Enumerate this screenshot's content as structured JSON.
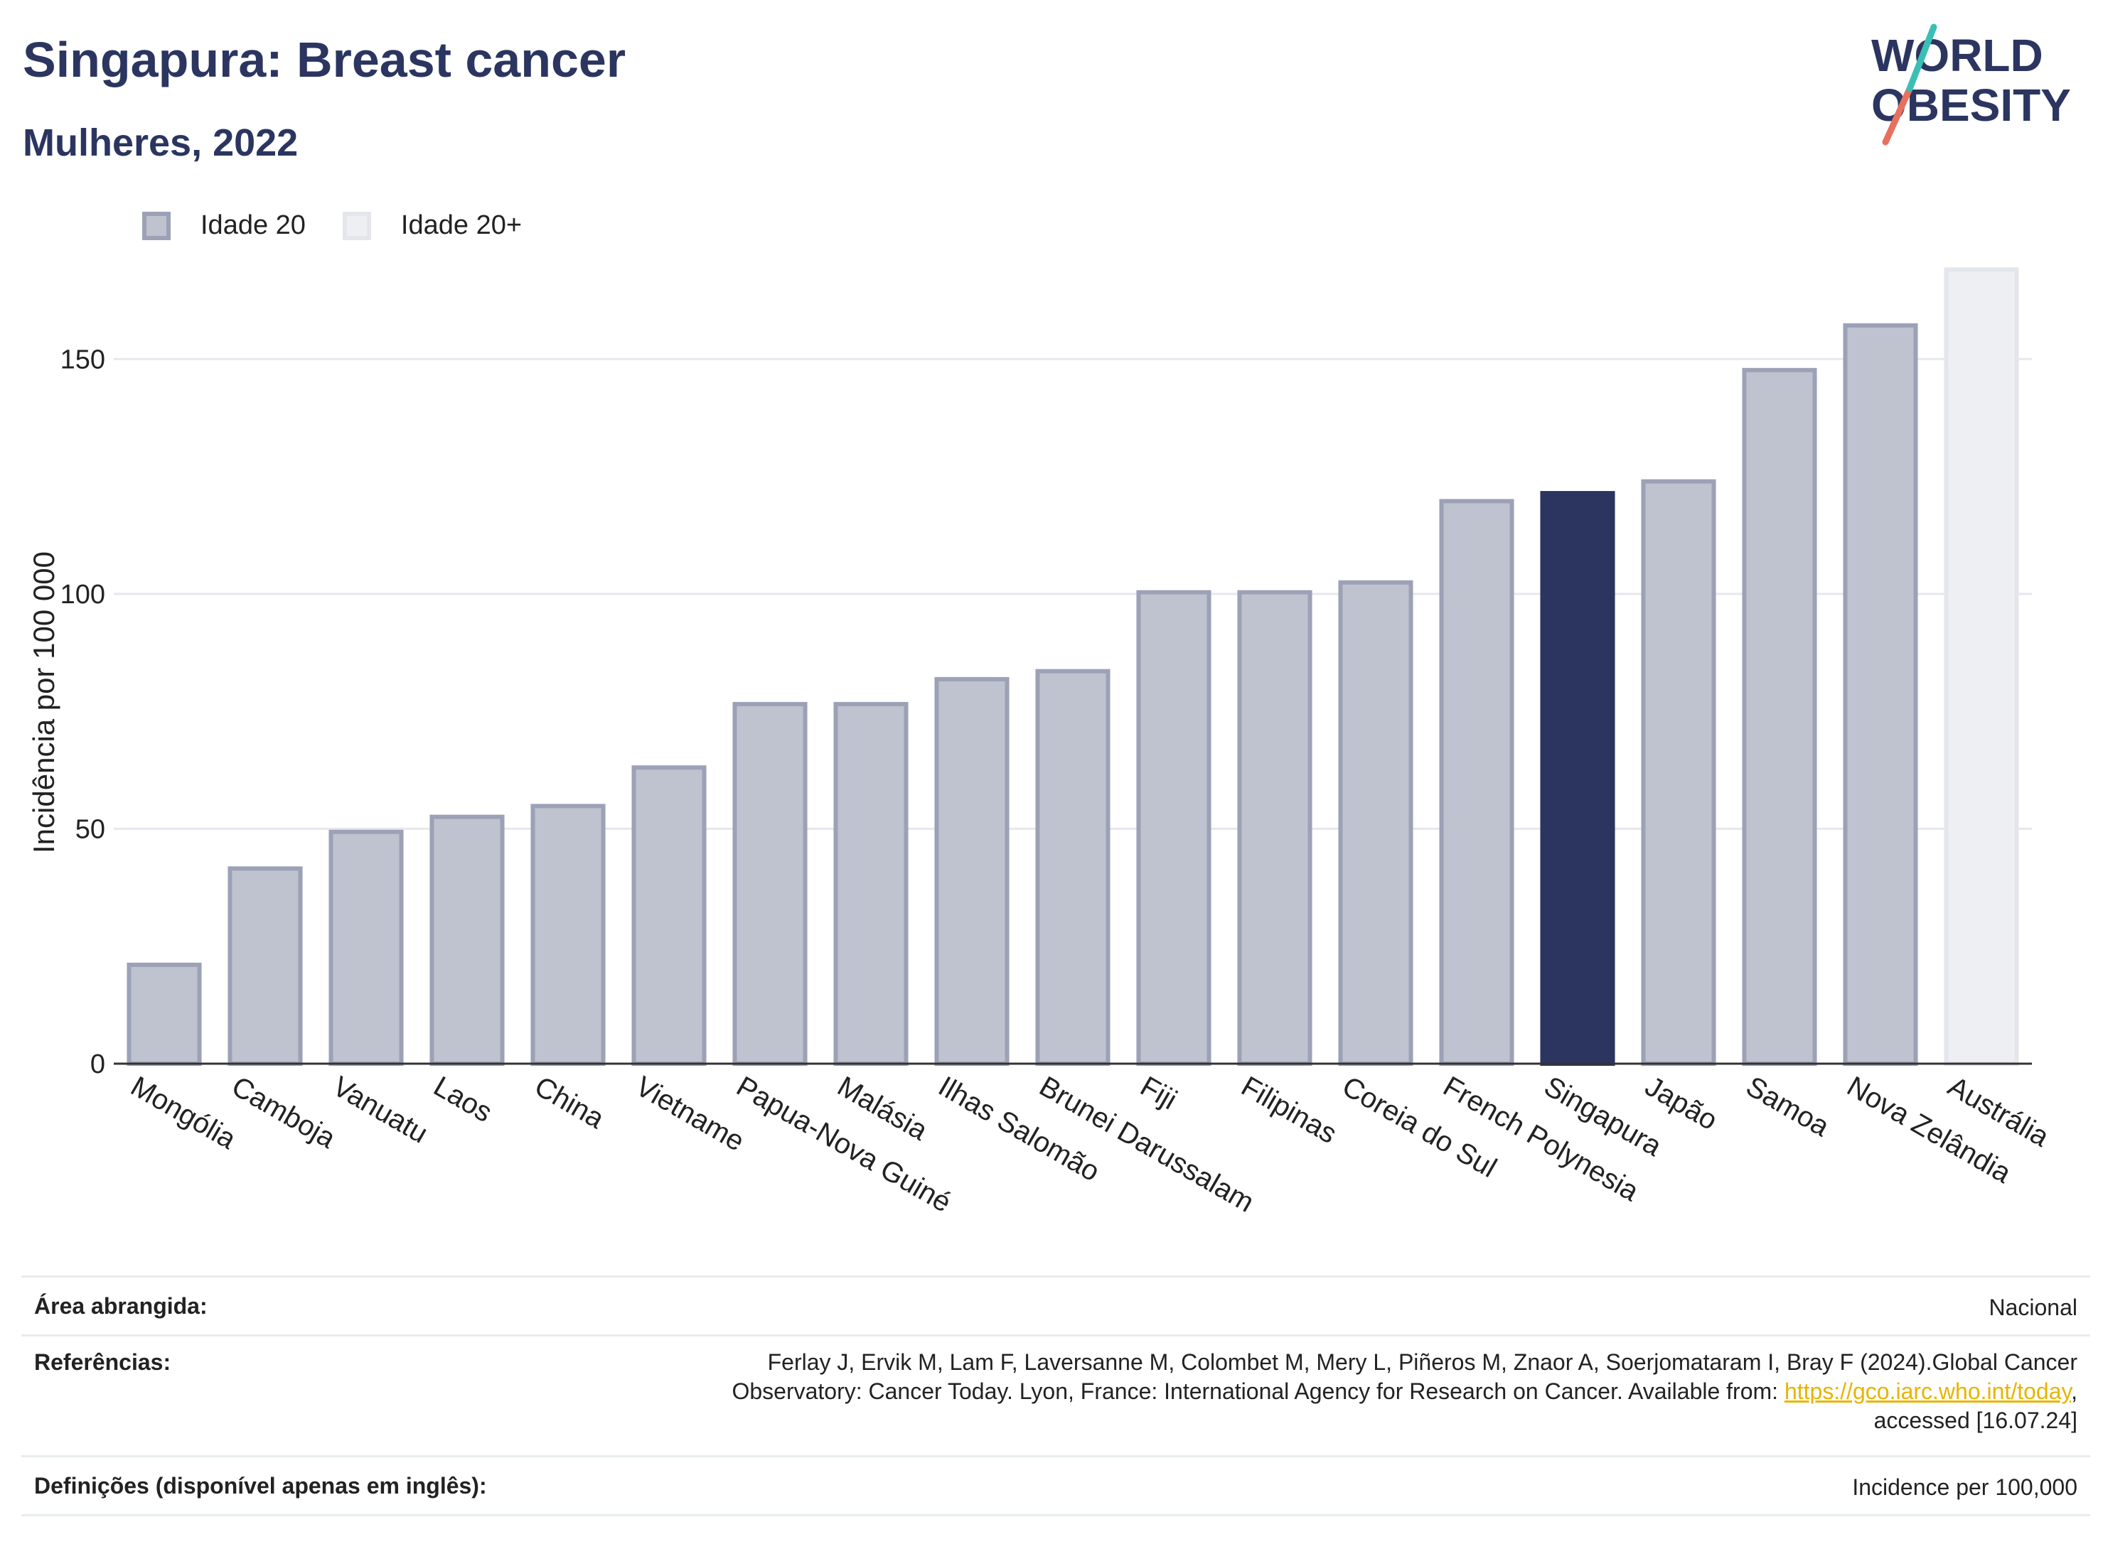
{
  "header": {
    "title": "Singapura: Breast cancer",
    "subtitle": "Mulheres, 2022"
  },
  "logo": {
    "line1": "WORLD",
    "line2": "OBESITY"
  },
  "legend": {
    "items": [
      {
        "label": "Idade 20"
      },
      {
        "label": "Idade 20+"
      }
    ]
  },
  "colors": {
    "bar_default": "#bfc2cf",
    "bar_default_border": "#9ca1b6",
    "bar_highlight": "#2b3560",
    "bar_light": "#eeeff3",
    "bar_light_border": "#e4e6ec",
    "link": "#e8b400"
  },
  "chart_data": {
    "type": "bar",
    "title": "Singapura: Breast cancer",
    "subtitle": "Mulheres, 2022",
    "ylabel": "Incidência por 100 000",
    "xlabel": "",
    "ylim": [
      0,
      175
    ],
    "yticks": [
      0,
      50,
      100,
      150
    ],
    "grid": true,
    "legend_position": "top-left",
    "categories": [
      "Mongólia",
      "Camboja",
      "Vanuatu",
      "Laos",
      "China",
      "Vietname",
      "Papua-Nova Guiné",
      "Malásia",
      "Ilhas Salomão",
      "Brunei Darussalam",
      "Fiji",
      "Filipinas",
      "Coreia do Sul",
      "French Polynesia",
      "Singapura",
      "Japão",
      "Samoa",
      "Nova Zelândia",
      "Austrália"
    ],
    "values": [
      21.5,
      42,
      49.8,
      53,
      55.3,
      63.5,
      77,
      77,
      82.3,
      84,
      100.8,
      100.8,
      102.9,
      120.2,
      121.9,
      124.4,
      148.1,
      157.6,
      169.5
    ],
    "series_type": [
      "Idade 20",
      "Idade 20",
      "Idade 20",
      "Idade 20",
      "Idade 20",
      "Idade 20",
      "Idade 20",
      "Idade 20",
      "Idade 20",
      "Idade 20",
      "Idade 20",
      "Idade 20",
      "Idade 20",
      "Idade 20",
      "Idade 20",
      "Idade 20",
      "Idade 20",
      "Idade 20",
      "Idade 20+"
    ],
    "highlight": "Singapura"
  },
  "footer": {
    "area_label": "Área abrangida:",
    "area_value": "Nacional",
    "refs_label": "Referências:",
    "refs_line1": "Ferlay J, Ervik M, Lam F, Laversanne M, Colombet M, Mery L, Piñeros M, Znaor A, Soerjomataram I, Bray F (2024).Global Cancer",
    "refs_line2_pre": "Observatory: Cancer Today. Lyon, France: International Agency for Research on Cancer. Available from: ",
    "refs_link": "https://gco.iarc.who.int/today",
    "refs_line2_post": ",",
    "refs_line3": "accessed [16.07.24]",
    "defs_label": "Definições (disponível apenas em inglês):",
    "defs_value": "Incidence per 100,000"
  }
}
